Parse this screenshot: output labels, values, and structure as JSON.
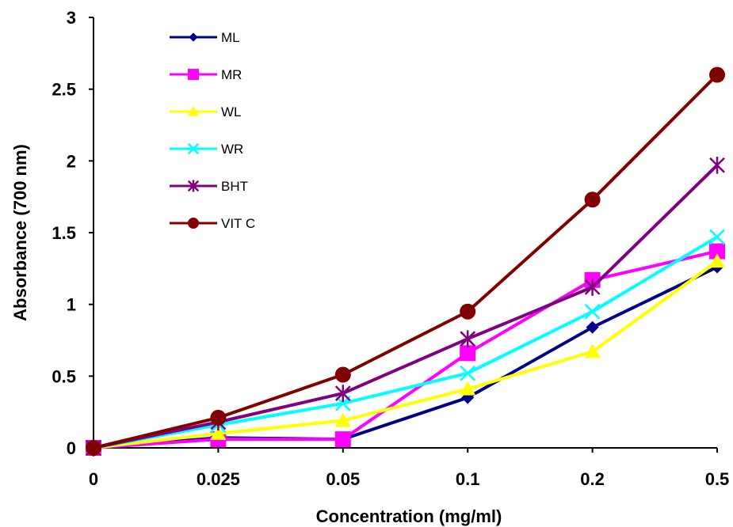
{
  "chart_data": {
    "type": "line",
    "title": "",
    "xlabel": "Concentration (mg/ml)",
    "ylabel": "Absorbance (700 nm)",
    "categories": [
      "0",
      "0.025",
      "0.05",
      "0.1",
      "0.2",
      "0.5"
    ],
    "ylim": [
      0,
      3
    ],
    "yticks": [
      "0",
      "0.5",
      "1",
      "1.5",
      "2",
      "2.5",
      "3"
    ],
    "grid": false,
    "legend_position": "top-left",
    "series": [
      {
        "name": "ML",
        "color": "#00008b",
        "marker": "diamond",
        "values": [
          0.0,
          0.07,
          0.06,
          0.35,
          0.84,
          1.26
        ]
      },
      {
        "name": "MR",
        "color": "#ff00ff",
        "marker": "square",
        "values": [
          0.0,
          0.06,
          0.06,
          0.66,
          1.17,
          1.37
        ]
      },
      {
        "name": "WL",
        "color": "#ffff00",
        "marker": "triangle",
        "values": [
          0.0,
          0.1,
          0.19,
          0.41,
          0.67,
          1.3
        ]
      },
      {
        "name": "WR",
        "color": "#00ffff",
        "marker": "x",
        "values": [
          0.0,
          0.16,
          0.31,
          0.52,
          0.95,
          1.47
        ]
      },
      {
        "name": "BHT",
        "color": "#800080",
        "marker": "star",
        "values": [
          0.0,
          0.18,
          0.38,
          0.76,
          1.12,
          1.97
        ]
      },
      {
        "name": "VIT C",
        "color": "#800000",
        "marker": "circle",
        "values": [
          0.0,
          0.21,
          0.51,
          0.95,
          1.73,
          2.6
        ]
      }
    ]
  }
}
